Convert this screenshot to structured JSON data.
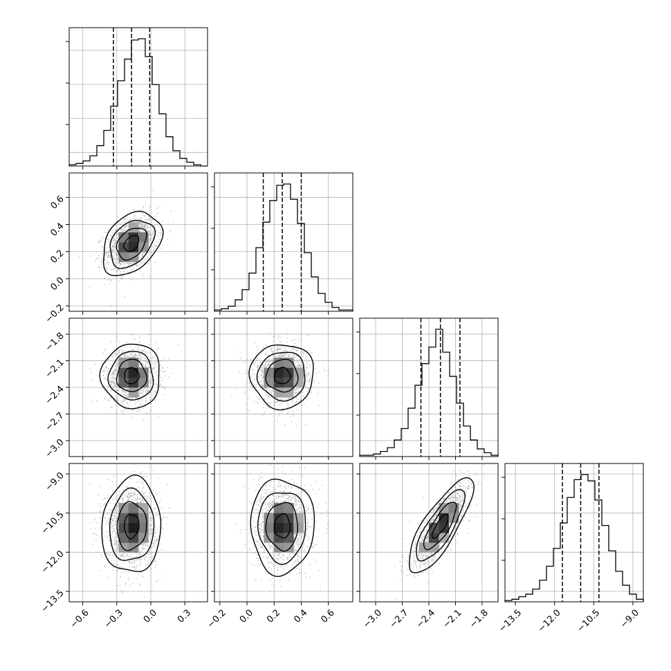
{
  "chart_data": {
    "type": "corner",
    "n_params": 4,
    "params": [
      {
        "range": [
          -0.72,
          0.5
        ],
        "ticks": [
          -0.6,
          -0.3,
          0.0,
          0.3
        ],
        "tick_labels": [
          "−0.6",
          "−0.3",
          "0.0",
          "0.3"
        ],
        "mean": -0.17,
        "sd": 0.1,
        "quantiles": [
          -0.33,
          -0.17,
          -0.01
        ],
        "hist_counts": [
          1,
          2,
          4,
          8,
          16,
          28,
          47,
          67,
          84,
          99,
          100,
          86,
          64,
          41,
          23,
          12,
          6,
          3,
          1,
          0
        ]
      },
      {
        "range": [
          -0.24,
          0.78
        ],
        "ticks": [
          -0.2,
          0.0,
          0.2,
          0.4,
          0.6
        ],
        "tick_labels": [
          "−0.2",
          "0.0",
          "0.2",
          "0.4",
          "0.6"
        ],
        "mean": 0.26,
        "sd": 0.09,
        "quantiles": [
          0.12,
          0.26,
          0.4
        ],
        "hist_counts": [
          1,
          2,
          4,
          9,
          17,
          30,
          50,
          70,
          87,
          99,
          100,
          88,
          69,
          46,
          27,
          14,
          7,
          3,
          1,
          1
        ]
      },
      {
        "range": [
          -3.18,
          -1.62
        ],
        "ticks": [
          -3.0,
          -2.7,
          -2.4,
          -2.1,
          -1.8
        ],
        "tick_labels": [
          "−3.0",
          "−2.7",
          "−2.4",
          "−2.1",
          "−1.8"
        ],
        "mean": -2.27,
        "sd": 0.14,
        "quantiles": [
          -2.49,
          -2.27,
          -2.05
        ],
        "hist_counts": [
          1,
          1,
          2,
          4,
          7,
          13,
          22,
          38,
          56,
          73,
          86,
          100,
          82,
          63,
          42,
          24,
          13,
          6,
          3,
          1
        ]
      },
      {
        "range": [
          -13.9,
          -8.6
        ],
        "ticks": [
          -13.5,
          -12.0,
          -10.5,
          -9.0
        ],
        "tick_labels": [
          "−13.5",
          "−12.0",
          "−10.5",
          "−9.0"
        ],
        "mean": -11.0,
        "sd": 0.7,
        "quantiles": [
          -11.7,
          -11.0,
          -10.3
        ],
        "hist_counts": [
          1,
          2,
          4,
          6,
          10,
          17,
          28,
          42,
          62,
          82,
          96,
          100,
          95,
          80,
          60,
          40,
          24,
          13,
          6,
          2
        ]
      }
    ],
    "correlations": [
      [
        1.0,
        0.35,
        0.0,
        0.05
      ],
      [
        0.35,
        1.0,
        0.0,
        0.0
      ],
      [
        0.0,
        0.0,
        1.0,
        0.8
      ],
      [
        0.05,
        0.0,
        0.8,
        1.0
      ]
    ],
    "contour_levels_sigma": [
      0.5,
      1.0,
      1.5,
      2.0
    ],
    "quantile_line_style": "dashed",
    "grid": true,
    "colors": {
      "axes": "#000000",
      "grid": "#b0b0b0",
      "points": "#9a9a9a",
      "contour": "#000000"
    }
  }
}
